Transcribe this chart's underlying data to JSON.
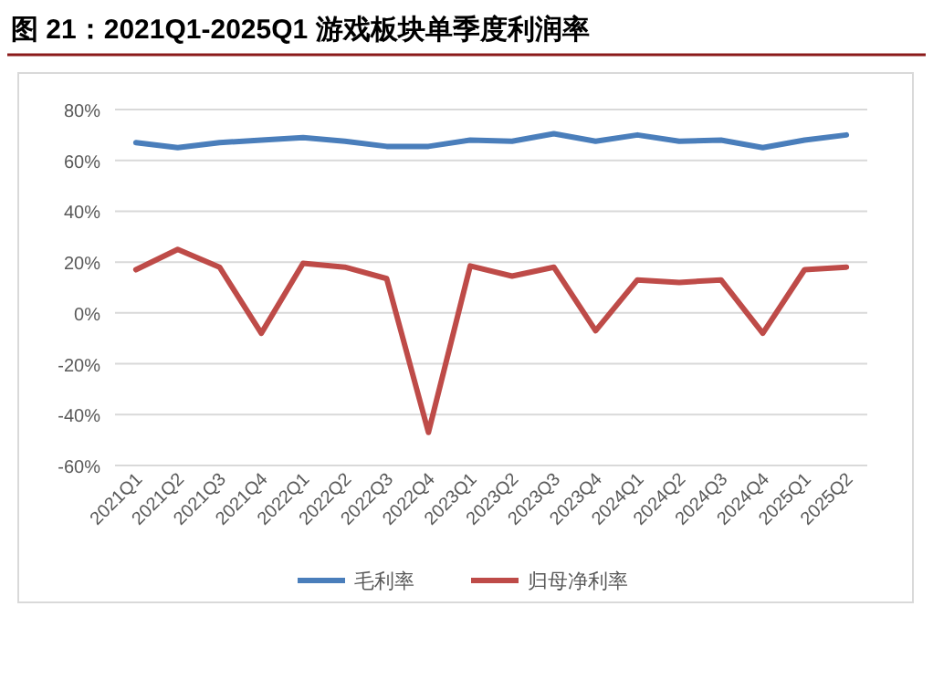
{
  "chart_data": {
    "type": "line",
    "title": "图 21：2021Q1-2025Q1 游戏板块单季度利润率",
    "categories": [
      "2021Q1",
      "2021Q2",
      "2021Q3",
      "2021Q4",
      "2022Q1",
      "2022Q2",
      "2022Q3",
      "2022Q4",
      "2023Q1",
      "2023Q2",
      "2023Q3",
      "2023Q4",
      "2024Q1",
      "2024Q2",
      "2024Q3",
      "2024Q4",
      "2025Q1",
      "2025Q2"
    ],
    "series": [
      {
        "name": "毛利率",
        "color": "#4a7ebb",
        "values": [
          67,
          65,
          67,
          68,
          69,
          67.5,
          65.5,
          65.5,
          68,
          67.5,
          70.5,
          67.5,
          70,
          67.5,
          68,
          65,
          68,
          70
        ]
      },
      {
        "name": "归母净利率",
        "color": "#be4b48",
        "values": [
          17,
          25,
          18,
          -8,
          19.5,
          18,
          13.5,
          -47,
          18.5,
          14.5,
          18,
          -7,
          13,
          12,
          13,
          -8,
          17,
          18
        ]
      }
    ],
    "ylim": [
      -60,
      80
    ],
    "yticks": [
      {
        "value": -60,
        "label": "-60%"
      },
      {
        "value": -40,
        "label": "-40%"
      },
      {
        "value": -20,
        "label": "-20%"
      },
      {
        "value": 0,
        "label": "0%"
      },
      {
        "value": 20,
        "label": "20%"
      },
      {
        "value": 40,
        "label": "40%"
      },
      {
        "value": 60,
        "label": "60%"
      },
      {
        "value": 80,
        "label": "80%"
      }
    ],
    "grid": "y",
    "legend": "bottom",
    "marker": "none",
    "line_style": "solid"
  }
}
